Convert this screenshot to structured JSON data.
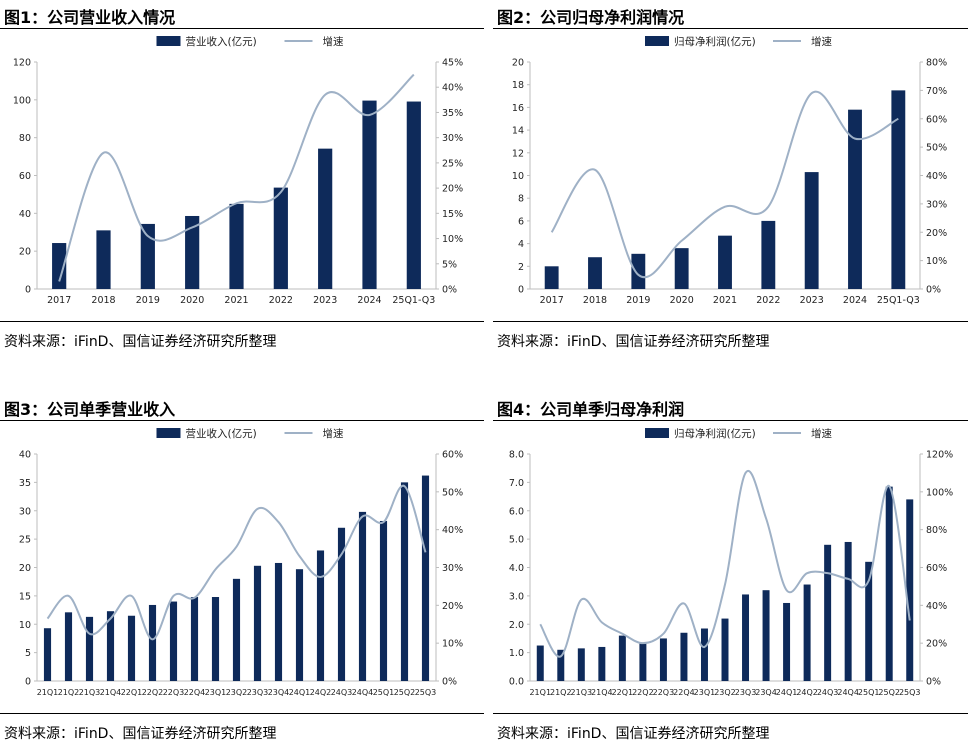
{
  "panels": [
    {
      "title": "图1：公司营业收入情况",
      "source": "资料来源：iFinD、国信证券经济研究所整理"
    },
    {
      "title": "图2：公司归母净利润情况",
      "source": "资料来源：iFinD、国信证券经济研究所整理"
    },
    {
      "title": "图3：公司单季营业收入",
      "source": "资料来源：iFinD、国信证券经济研究所整理"
    },
    {
      "title": "图4：公司单季归母净利润",
      "source": "资料来源：iFinD、国信证券经济研究所整理"
    }
  ],
  "colors": {
    "bar": "#0e2a5a",
    "line": "#9fb1c6",
    "axis": "#bdbdbd"
  },
  "chart_data": [
    {
      "type": "bar",
      "title": "图1：公司营业收入情况",
      "categories": [
        "2017",
        "2018",
        "2019",
        "2020",
        "2021",
        "2022",
        "2023",
        "2024",
        "25Q1-Q3"
      ],
      "series": [
        {
          "name": "营业收入(亿元)",
          "axis": "left",
          "kind": "bar",
          "values": [
            24.3,
            31.0,
            34.4,
            38.6,
            45.0,
            53.6,
            74.2,
            99.6,
            99.1
          ]
        },
        {
          "name": "增速",
          "axis": "right",
          "kind": "line",
          "values": [
            1.5,
            27.0,
            10.5,
            12.2,
            17.0,
            19.2,
            38.5,
            34.5,
            42.5
          ]
        }
      ],
      "ylim": [
        0,
        120
      ],
      "yticks": [
        0,
        20,
        40,
        60,
        80,
        100,
        120
      ],
      "y2lim": [
        0,
        45
      ],
      "y2ticks": [
        0,
        5,
        10,
        15,
        20,
        25,
        30,
        35,
        40,
        45
      ],
      "y2suffix": "%"
    },
    {
      "type": "bar",
      "title": "图2：公司归母净利润情况",
      "categories": [
        "2017",
        "2018",
        "2019",
        "2020",
        "2021",
        "2022",
        "2023",
        "2024",
        "25Q1-Q3"
      ],
      "series": [
        {
          "name": "归母净利润(亿元)",
          "axis": "left",
          "kind": "bar",
          "values": [
            2.0,
            2.8,
            3.1,
            3.6,
            4.7,
            6.0,
            10.3,
            15.8,
            17.5
          ]
        },
        {
          "name": "增速",
          "axis": "right",
          "kind": "line",
          "values": [
            20,
            42,
            5,
            17,
            29,
            29,
            69,
            53,
            60
          ]
        }
      ],
      "ylim": [
        0,
        20
      ],
      "yticks": [
        0,
        2,
        4,
        6,
        8,
        10,
        12,
        14,
        16,
        18,
        20
      ],
      "y2lim": [
        0,
        80
      ],
      "y2ticks": [
        0,
        10,
        20,
        30,
        40,
        50,
        60,
        70,
        80
      ],
      "y2suffix": "%"
    },
    {
      "type": "bar",
      "title": "图3：公司单季营业收入",
      "categories": [
        "21Q1",
        "21Q2",
        "21Q3",
        "21Q4",
        "22Q1",
        "22Q2",
        "22Q3",
        "22Q4",
        "23Q1",
        "23Q2",
        "23Q3",
        "23Q4",
        "24Q1",
        "24Q2",
        "24Q3",
        "24Q4",
        "25Q1",
        "25Q2",
        "25Q3"
      ],
      "series": [
        {
          "name": "营业收入(亿元)",
          "axis": "left",
          "kind": "bar",
          "values": [
            9.3,
            12.1,
            11.3,
            12.3,
            11.5,
            13.4,
            14.0,
            14.8,
            14.8,
            18.0,
            20.3,
            20.8,
            19.7,
            23.0,
            27.0,
            29.8,
            28.2,
            35.0,
            36.2
          ]
        },
        {
          "name": "增速",
          "axis": "right",
          "kind": "line",
          "values": [
            16.5,
            22.5,
            12.5,
            16.5,
            22.5,
            11.0,
            22.5,
            22.0,
            29.5,
            35.5,
            45.5,
            42.0,
            33.0,
            27.5,
            33.5,
            43.5,
            42.0,
            51.5,
            34.0
          ]
        }
      ],
      "ylim": [
        0,
        40
      ],
      "yticks": [
        0,
        5,
        10,
        15,
        20,
        25,
        30,
        35,
        40
      ],
      "y2lim": [
        0,
        60
      ],
      "y2ticks": [
        0,
        10,
        20,
        30,
        40,
        50,
        60
      ],
      "y2suffix": "%"
    },
    {
      "type": "bar",
      "title": "图4：公司单季归母净利润",
      "categories": [
        "21Q1",
        "21Q2",
        "21Q3",
        "21Q4",
        "22Q1",
        "22Q2",
        "22Q3",
        "22Q4",
        "23Q1",
        "23Q2",
        "23Q3",
        "23Q4",
        "24Q1",
        "24Q2",
        "24Q3",
        "24Q4",
        "25Q1",
        "25Q2",
        "25Q3"
      ],
      "series": [
        {
          "name": "归母净利润(亿元)",
          "axis": "left",
          "kind": "bar",
          "values": [
            1.25,
            1.1,
            1.15,
            1.2,
            1.6,
            1.35,
            1.5,
            1.7,
            1.85,
            2.2,
            3.05,
            3.2,
            2.75,
            3.4,
            4.8,
            4.9,
            4.2,
            6.85,
            6.4
          ]
        },
        {
          "name": "增速",
          "axis": "right",
          "kind": "line",
          "values": [
            30,
            13,
            43,
            31,
            25,
            20,
            25,
            41,
            18,
            51,
            110,
            86,
            48,
            57,
            57,
            54,
            53,
            103,
            32
          ]
        }
      ],
      "ylim": [
        0,
        8
      ],
      "yticks": [
        0,
        1,
        2,
        3,
        4,
        5,
        6,
        7,
        8
      ],
      "ytickdecimals": 1,
      "y2lim": [
        0,
        120
      ],
      "y2ticks": [
        0,
        20,
        40,
        60,
        80,
        100,
        120
      ],
      "y2suffix": "%"
    }
  ]
}
